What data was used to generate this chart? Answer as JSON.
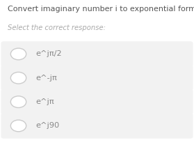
{
  "title": "Convert imaginary number i to exponential form.",
  "subtitle": "Select the correct response:",
  "options": [
    "e^jπ/2",
    "e^-jπ",
    "e^jπ",
    "e^j90"
  ],
  "bg_color": "#ffffff",
  "option_bg_color": "#f2f2f2",
  "title_color": "#555555",
  "subtitle_color": "#aaaaaa",
  "option_text_color": "#888888",
  "circle_edge_color": "#cccccc",
  "title_fontsize": 8.0,
  "subtitle_fontsize": 7.2,
  "option_fontsize": 8.2
}
